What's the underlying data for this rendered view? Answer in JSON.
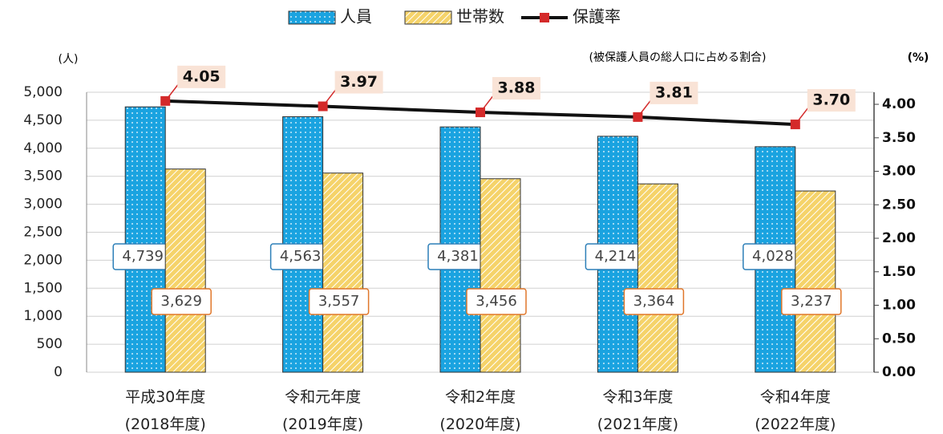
{
  "chart_data": {
    "type": "bar_line",
    "categories": [
      "平成30年度\n(2018年度)",
      "令和元年度\n(2019年度)",
      "令和2年度\n(2020年度)",
      "令和3年度\n(2021年度)",
      "令和4年度\n(2022年度)"
    ],
    "y_unit": "(人)",
    "y2_unit": "(%)",
    "annotation": "(被保護人員の総人口に占める割合)",
    "series": [
      {
        "name": "人員",
        "type": "bar",
        "color": "#1aa3e0",
        "values": [
          4739,
          4563,
          4381,
          4214,
          4028
        ],
        "value_labels": [
          "4,739",
          "4,563",
          "4,381",
          "4,214",
          "4,028"
        ]
      },
      {
        "name": "世帯数",
        "type": "bar",
        "color": "#f5d36a",
        "values": [
          3629,
          3557,
          3456,
          3364,
          3237
        ],
        "value_labels": [
          "3,629",
          "3,557",
          "3,456",
          "3,364",
          "3,237"
        ]
      },
      {
        "name": "保護率",
        "type": "line",
        "axis": "y2",
        "color": "#111111",
        "marker_color": "#d42a2a",
        "values": [
          4.05,
          3.97,
          3.88,
          3.81,
          3.7
        ],
        "value_labels": [
          "4.05",
          "3.97",
          "3.88",
          "3.81",
          "3.70"
        ]
      }
    ],
    "ylim": [
      0,
      5000
    ],
    "yticks": [
      0,
      500,
      {
        "value": 1000,
        "label": "1,000"
      },
      {
        "value": 1500,
        "label": "1,500"
      },
      {
        "value": 2000,
        "label": "2,000"
      },
      {
        "value": 2500,
        "label": "2,500"
      },
      {
        "value": 3000,
        "label": "3,000"
      },
      {
        "value": 3500,
        "label": "3,500"
      },
      {
        "value": 4000,
        "label": "4,000"
      },
      {
        "value": 4500,
        "label": "4,500"
      },
      {
        "value": 5000,
        "label": "5,000"
      }
    ],
    "y2lim": [
      0,
      4.18
    ],
    "y2ticks": [
      {
        "value": 0,
        "label": "0.00"
      },
      {
        "value": 0.5,
        "label": "0.50"
      },
      {
        "value": 1,
        "label": "1.00"
      },
      {
        "value": 1.5,
        "label": "1.50"
      },
      {
        "value": 2,
        "label": "2.00"
      },
      {
        "value": 2.5,
        "label": "2.50"
      },
      {
        "value": 3,
        "label": "3.00"
      },
      {
        "value": 3.5,
        "label": "3.50"
      },
      {
        "value": 4,
        "label": "4.00"
      }
    ],
    "grid": true
  }
}
